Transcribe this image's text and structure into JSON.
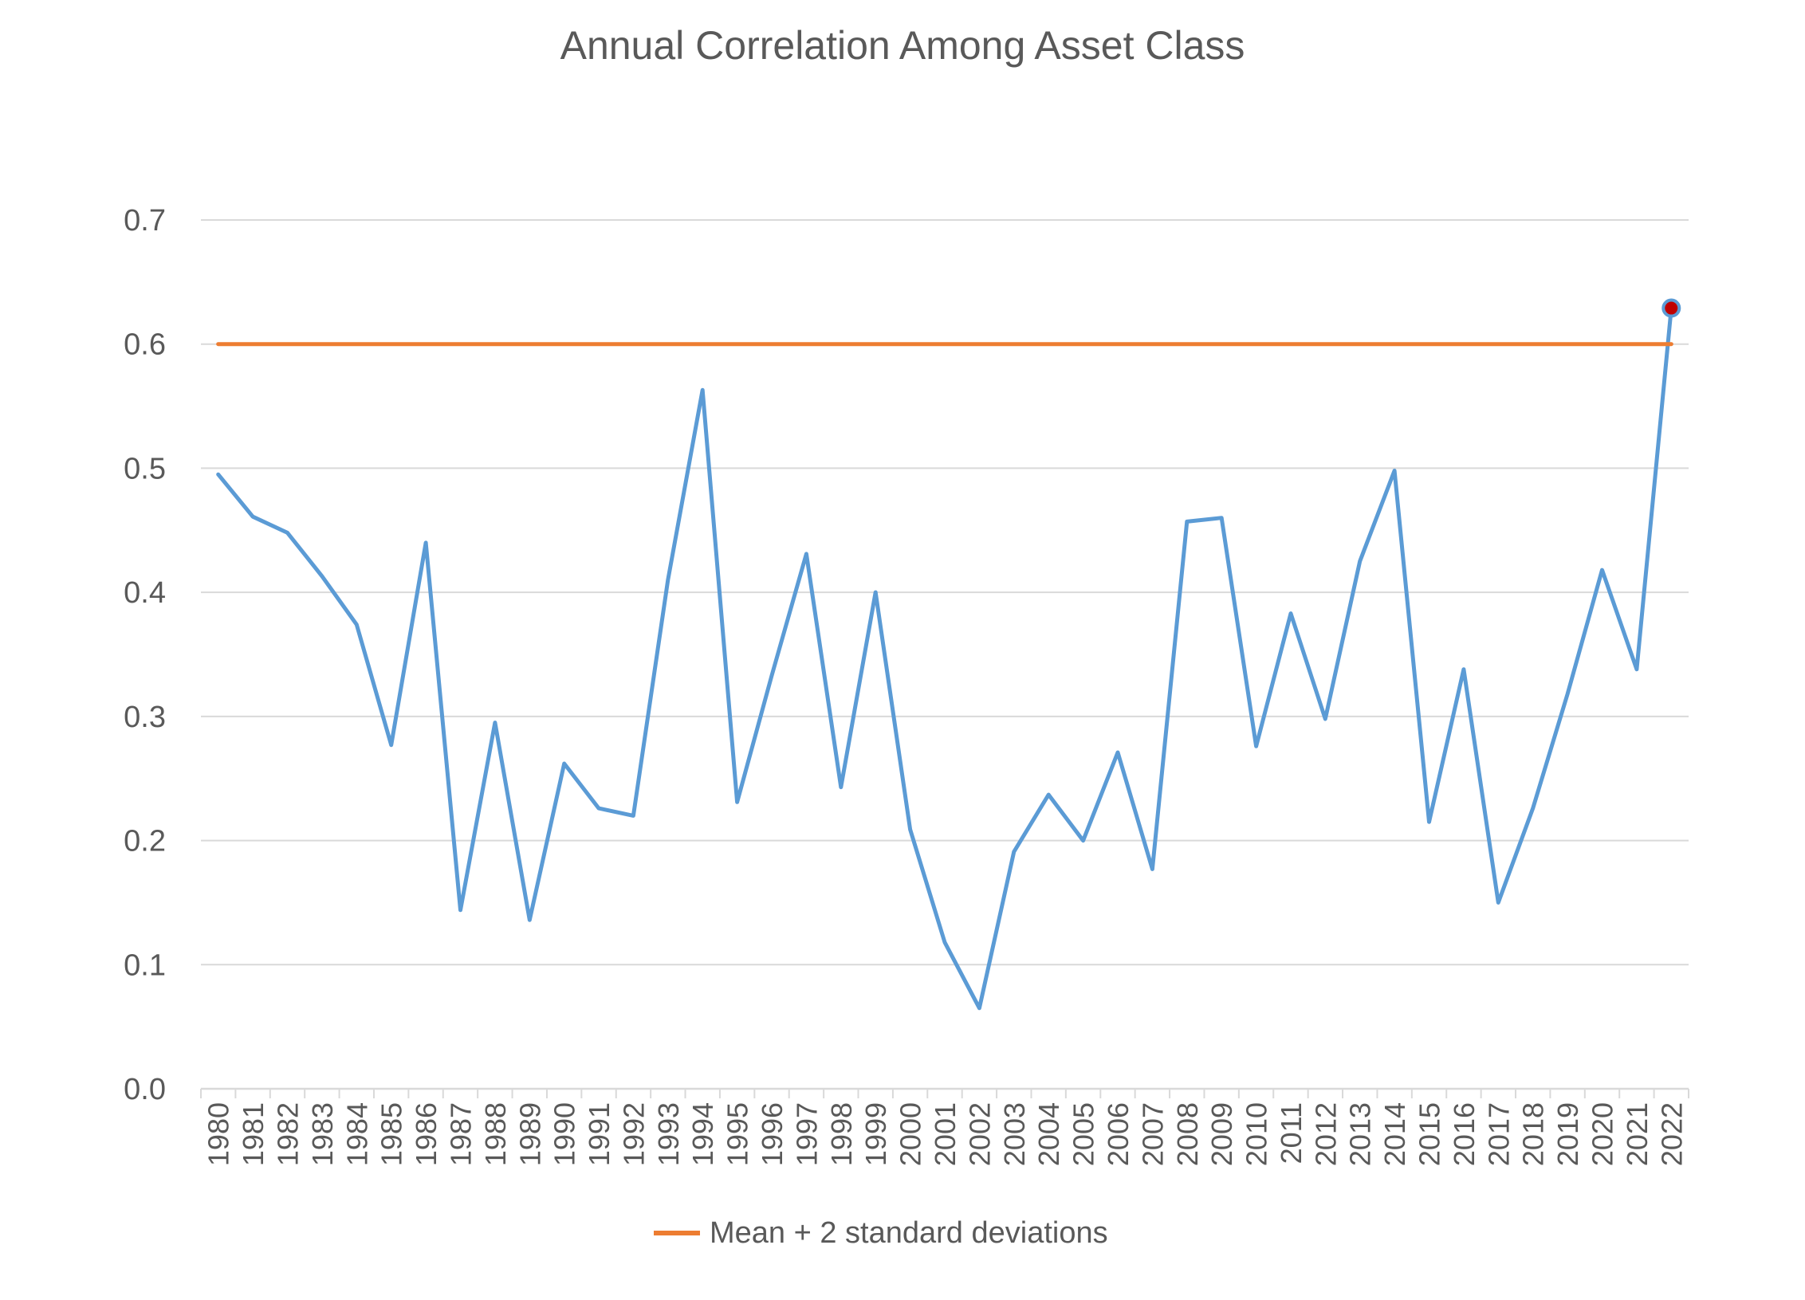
{
  "chart_data": {
    "type": "line",
    "title": "Annual Correlation Among Asset Class",
    "xlabel": "",
    "ylabel": "",
    "ylim": [
      0,
      0.7
    ],
    "yticks": [
      "0.0",
      "0.1",
      "0.2",
      "0.3",
      "0.4",
      "0.5",
      "0.6",
      "0.7"
    ],
    "grid": true,
    "legend_position": "bottom",
    "categories": [
      "1980",
      "1981",
      "1982",
      "1983",
      "1984",
      "1985",
      "1986",
      "1987",
      "1988",
      "1989",
      "1990",
      "1991",
      "1992",
      "1993",
      "1994",
      "1995",
      "1996",
      "1997",
      "1998",
      "1999",
      "2000",
      "2001",
      "2002",
      "2003",
      "2004",
      "2005",
      "2006",
      "2007",
      "2008",
      "2009",
      "2010",
      "2011",
      "2012",
      "2013",
      "2014",
      "2015",
      "2016",
      "2017",
      "2018",
      "2019",
      "2020",
      "2021",
      "2022"
    ],
    "series": [
      {
        "name": "",
        "color": "#5B9BD5",
        "values": [
          0.495,
          0.461,
          0.448,
          0.413,
          0.374,
          0.277,
          0.44,
          0.144,
          0.295,
          0.136,
          0.262,
          0.226,
          0.22,
          0.41,
          0.563,
          0.231,
          0.333,
          0.431,
          0.243,
          0.4,
          0.209,
          0.118,
          0.065,
          0.191,
          0.237,
          0.2,
          0.271,
          0.177,
          0.457,
          0.46,
          0.276,
          0.383,
          0.298,
          0.425,
          0.498,
          0.215,
          0.338,
          0.15,
          0.226,
          0.318,
          0.418,
          0.338,
          0.629
        ],
        "highlight": {
          "category": "2022",
          "fill": "#C00000"
        }
      },
      {
        "name": "Mean + 2 standard deviations",
        "color": "#ED7D31",
        "values": [
          0.6,
          0.6,
          0.6,
          0.6,
          0.6,
          0.6,
          0.6,
          0.6,
          0.6,
          0.6,
          0.6,
          0.6,
          0.6,
          0.6,
          0.6,
          0.6,
          0.6,
          0.6,
          0.6,
          0.6,
          0.6,
          0.6,
          0.6,
          0.6,
          0.6,
          0.6,
          0.6,
          0.6,
          0.6,
          0.6,
          0.6,
          0.6,
          0.6,
          0.6,
          0.6,
          0.6,
          0.6,
          0.6,
          0.6,
          0.6,
          0.6,
          0.6,
          0.6
        ]
      }
    ],
    "colors": {
      "gridline": "#D9D9D9",
      "axis_text": "#595959"
    }
  }
}
